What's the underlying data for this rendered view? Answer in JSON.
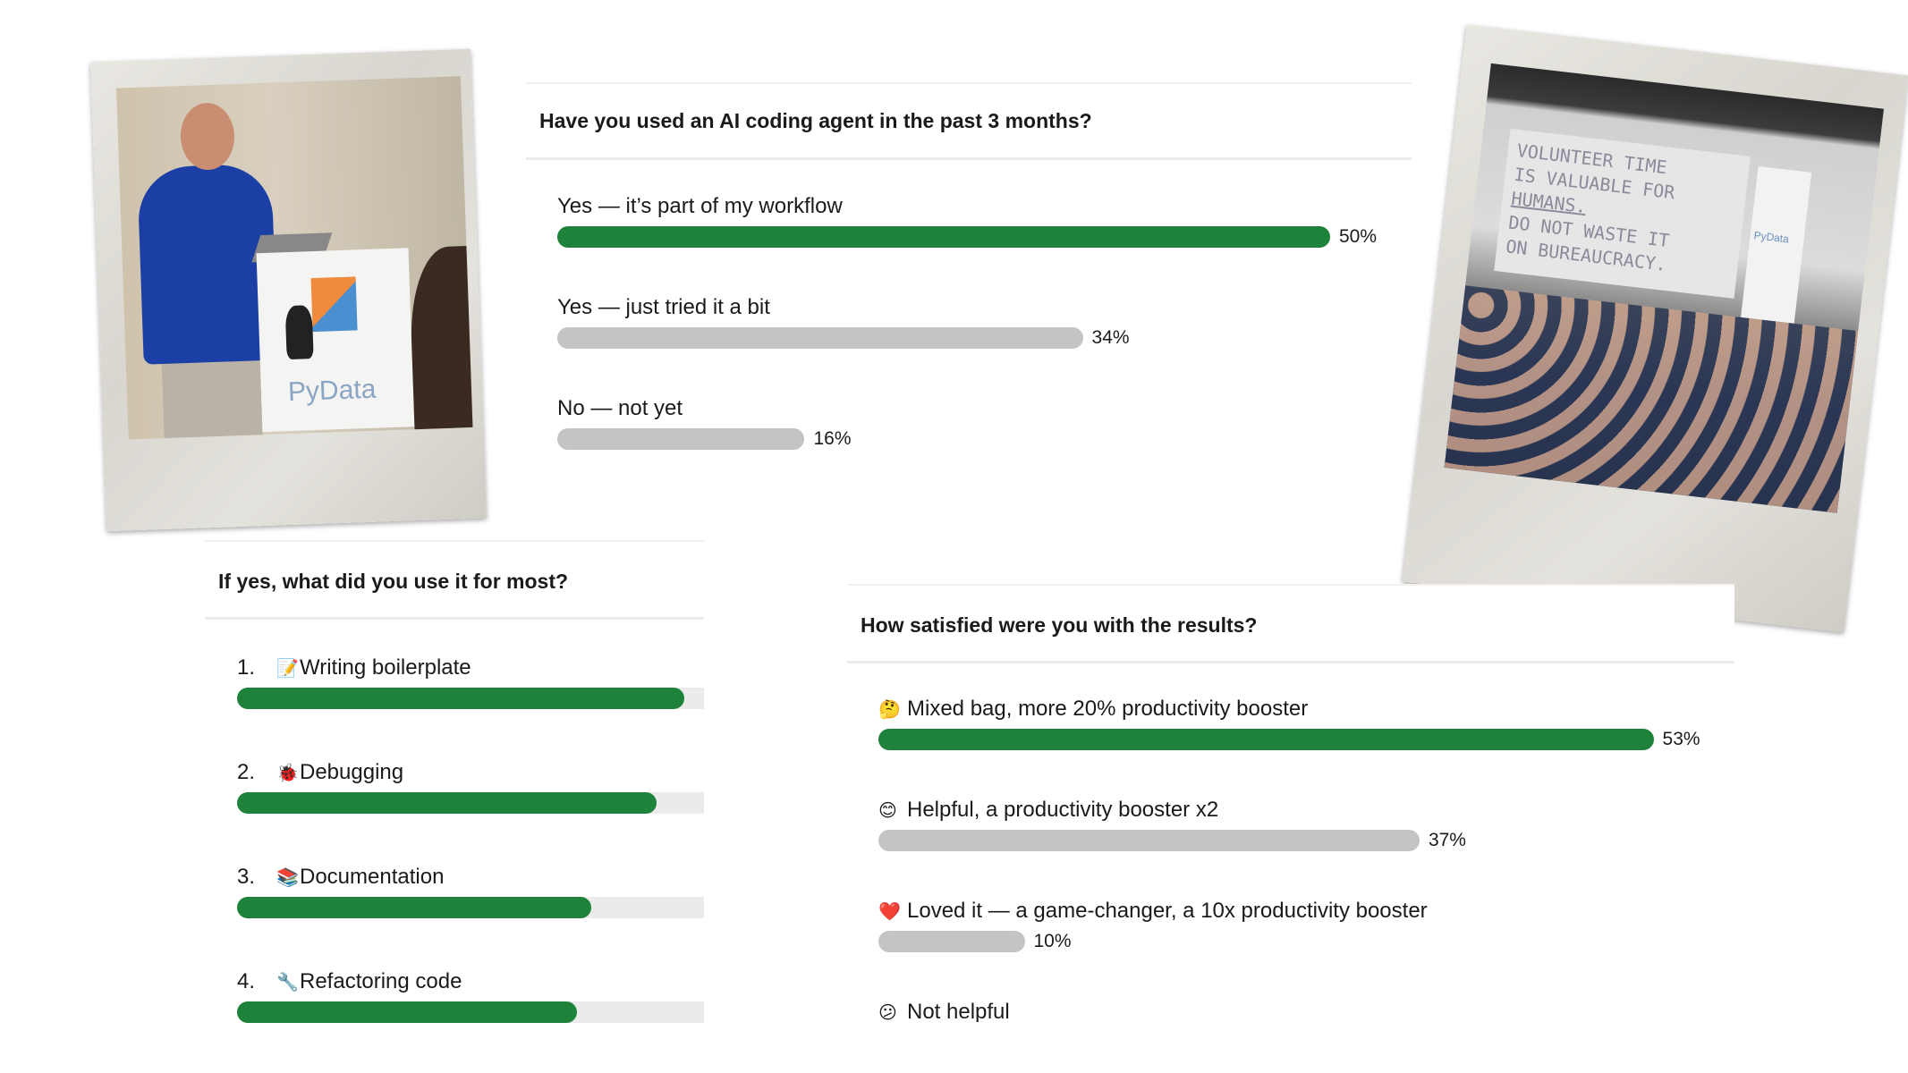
{
  "colors": {
    "accent": "#1e823a",
    "muted_bar": "#c4c4c4",
    "track": "#ebebeb"
  },
  "poll1": {
    "title": "Have you used an AI coding agent in the past 3 months?",
    "options": [
      {
        "label": "Yes — it’s part of my workflow",
        "percent": 50,
        "pct_text": "50%",
        "leading": true
      },
      {
        "label": "Yes — just tried it a bit",
        "percent": 34,
        "pct_text": "34%",
        "leading": false
      },
      {
        "label": "No — not yet",
        "percent": 16,
        "pct_text": "16%",
        "leading": false
      }
    ]
  },
  "poll2": {
    "title": "If yes, what did you use it for most?",
    "items": [
      {
        "rank": "1.",
        "icon": "memo-icon",
        "emoji": "📝",
        "label": "Writing boilerplate",
        "fill": 0.96
      },
      {
        "rank": "2.",
        "icon": "bug-icon",
        "emoji": "🐞",
        "label": "Debugging",
        "fill": 0.9
      },
      {
        "rank": "3.",
        "icon": "books-icon",
        "emoji": "📚",
        "label": "Documentation",
        "fill": 0.76
      },
      {
        "rank": "4.",
        "icon": "wrench-icon",
        "emoji": "🔧",
        "label": "Refactoring code",
        "fill": 0.73
      }
    ]
  },
  "poll3": {
    "title": "How satisfied were you with the results?",
    "options": [
      {
        "icon": "thinking-face-icon",
        "emoji": "🤔",
        "label": "Mixed bag, more 20% productivity booster",
        "percent": 53,
        "pct_text": "53%",
        "leading": true
      },
      {
        "icon": "smiling-face-icon",
        "emoji": "😊",
        "label": "Helpful, a productivity booster x2",
        "percent": 37,
        "pct_text": "37%",
        "leading": false
      },
      {
        "icon": "heart-icon",
        "emoji": "❤️",
        "label": "Loved it — a game-changer, a 10x productivity booster",
        "percent": 10,
        "pct_text": "10%",
        "leading": false
      },
      {
        "icon": "confused-face-icon",
        "emoji": "😕",
        "label": "Not helpful",
        "percent": null,
        "pct_text": null,
        "leading": false
      }
    ]
  },
  "photos": {
    "left": {
      "sign_text": "PyData"
    },
    "right": {
      "screen_lines": [
        "VOLUNTEER TIME",
        "IS VALUABLE FOR",
        "HUMANS.",
        "DO NOT WASTE IT",
        "ON BUREAUCRACY."
      ],
      "banner_text": "PyData"
    }
  }
}
